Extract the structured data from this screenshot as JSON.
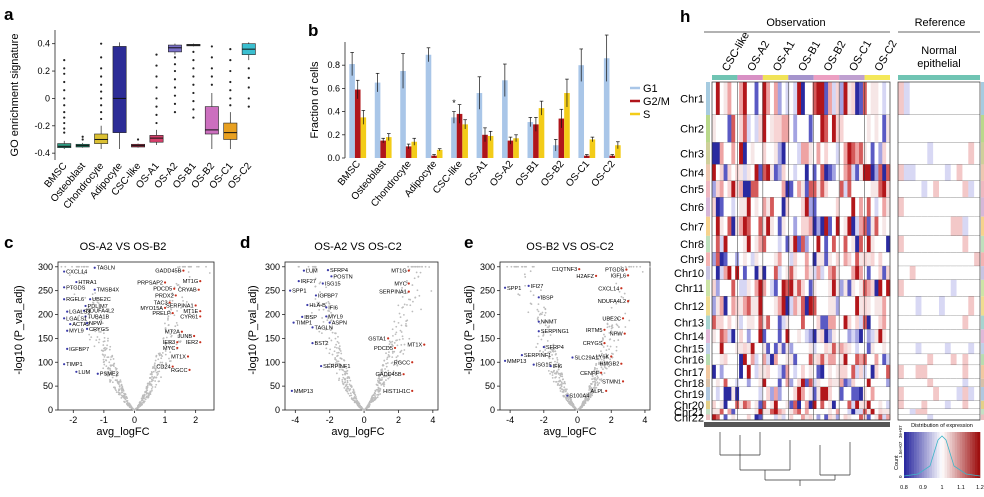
{
  "figure": {
    "panel_a": {
      "label": "a",
      "chart_data": {
        "type": "box",
        "ylabel": "GO enrichment signature",
        "ylim": [
          -0.45,
          0.5
        ],
        "yticks": [
          -0.4,
          -0.2,
          0.0,
          0.2,
          0.4
        ],
        "ytick_labels": [
          "-0.4",
          "-0.2",
          "0",
          "0.2",
          "0.4"
        ],
        "categories": [
          "BMSC",
          "Osteoblast",
          "Chondrocyte",
          "Adipocyte",
          "CSC-like",
          "OS-A1",
          "OS-A2",
          "OS-B1",
          "OS-B2",
          "OS-C1",
          "OS-C2"
        ],
        "colors": [
          "#2e9c82",
          "#1a8f6f",
          "#dbc032",
          "#2c2c96",
          "#b32e48",
          "#d6416c",
          "#7a70c8",
          "#b9b9b9",
          "#cc6fbf",
          "#e8a020",
          "#3bbfd0"
        ],
        "boxes": [
          {
            "q1": -0.36,
            "median": -0.35,
            "q3": -0.33,
            "whislo": -0.37,
            "whishi": -0.31,
            "outliers": [
              0.28,
              0.22,
              0.18,
              0.12,
              0.06,
              0.0,
              -0.05,
              -0.1,
              -0.14,
              -0.18,
              -0.22,
              -0.25
            ]
          },
          {
            "q1": -0.355,
            "median": -0.345,
            "q3": -0.335,
            "whislo": -0.36,
            "whishi": -0.325,
            "outliers": [
              -0.3,
              -0.28
            ]
          },
          {
            "q1": -0.33,
            "median": -0.3,
            "q3": -0.26,
            "whislo": -0.37,
            "whishi": -0.2,
            "outliers": [
              0.4,
              0.3,
              0.22,
              0.16,
              0.1,
              0.05,
              0.0,
              -0.05,
              -0.1,
              -0.15
            ]
          },
          {
            "q1": -0.25,
            "median": 0.0,
            "q3": 0.38,
            "whislo": -0.37,
            "whishi": 0.41,
            "outliers": []
          },
          {
            "q1": -0.355,
            "median": -0.345,
            "q3": -0.335,
            "whislo": -0.36,
            "whishi": -0.33,
            "outliers": [
              -0.3
            ]
          },
          {
            "q1": -0.32,
            "median": -0.29,
            "q3": -0.27,
            "whislo": -0.34,
            "whishi": -0.23,
            "outliers": [
              -0.18,
              -0.12,
              -0.06,
              0.0,
              0.08,
              0.16,
              0.24,
              0.32
            ]
          },
          {
            "q1": 0.34,
            "median": 0.37,
            "q3": 0.39,
            "whislo": 0.32,
            "whishi": 0.4,
            "outliers": [
              0.3,
              0.25,
              0.2,
              0.14,
              0.08,
              0.02,
              -0.04,
              -0.1
            ]
          },
          {
            "q1": 0.385,
            "median": 0.39,
            "q3": 0.395,
            "whislo": 0.38,
            "whishi": 0.4,
            "outliers": [
              0.34,
              0.28,
              0.22,
              0.16,
              0.1,
              0.04,
              -0.02,
              -0.08,
              -0.14
            ]
          },
          {
            "q1": -0.26,
            "median": -0.23,
            "q3": -0.06,
            "whislo": -0.37,
            "whishi": 0.04,
            "outliers": [
              0.1,
              0.16,
              0.22,
              0.3,
              0.38
            ]
          },
          {
            "q1": -0.3,
            "median": -0.25,
            "q3": -0.18,
            "whislo": -0.37,
            "whishi": -0.1,
            "outliers": [
              -0.05,
              0.0,
              0.06,
              0.12,
              0.2,
              0.28,
              0.36
            ]
          },
          {
            "q1": 0.32,
            "median": 0.36,
            "q3": 0.4,
            "whislo": 0.28,
            "whishi": 0.41,
            "outliers": [
              0.22,
              0.15,
              0.08,
              0.0,
              -0.06
            ]
          }
        ]
      }
    },
    "panel_b": {
      "label": "b",
      "chart_data": {
        "type": "bar",
        "ylabel": "Fraction of cells",
        "ylim": [
          0,
          1.0
        ],
        "yticks": [
          0.0,
          0.2,
          0.4,
          0.6,
          0.8
        ],
        "ytick_labels": [
          "0.0",
          "0.2",
          "0.4",
          "0.6",
          "0.8"
        ],
        "categories": [
          "BMSC",
          "Osteoblast",
          "Chondrocyte",
          "Adipocyte",
          "CSC-like",
          "OS-A1",
          "OS-A2",
          "OS-B1",
          "OS-B2",
          "OS-C1",
          "OS-C2"
        ],
        "series": [
          {
            "name": "G1",
            "color": "#a9c6e8",
            "values": [
              0.81,
              0.65,
              0.75,
              0.89,
              0.35,
              0.56,
              0.67,
              0.31,
              0.11,
              0.8,
              0.86
            ],
            "errors": [
              0.1,
              0.08,
              0.15,
              0.06,
              0.05,
              0.14,
              0.14,
              0.04,
              0.05,
              0.14,
              0.2
            ]
          },
          {
            "name": "G2/M",
            "color": "#b0151b",
            "values": [
              0.59,
              0.15,
              0.1,
              0.02,
              0.38,
              0.2,
              0.15,
              0.29,
              0.34,
              0.02,
              0.02
            ],
            "errors": [
              0.08,
              0.02,
              0.02,
              0.01,
              0.08,
              0.06,
              0.03,
              0.06,
              0.08,
              0.01,
              0.01
            ]
          },
          {
            "name": "S",
            "color": "#f3cc18",
            "values": [
              0.35,
              0.18,
              0.14,
              0.07,
              0.29,
              0.19,
              0.17,
              0.43,
              0.56,
              0.16,
              0.11
            ],
            "errors": [
              0.06,
              0.03,
              0.03,
              0.01,
              0.04,
              0.04,
              0.03,
              0.06,
              0.12,
              0.02,
              0.03
            ]
          }
        ],
        "annotation": "*"
      }
    },
    "panel_c": {
      "label": "c",
      "chart_data": {
        "type": "scatter",
        "title": "OS-A2 VS OS-B2",
        "xlabel": "avg_logFC",
        "ylabel": "-log10 (P_val_adj)",
        "xlim": [
          -2.5,
          2.6
        ],
        "ylim": [
          0,
          310
        ],
        "xticks": [
          -2,
          -1,
          0,
          1,
          2
        ],
        "yticks": [
          0,
          50,
          100,
          150,
          200,
          250,
          300
        ],
        "genes": [
          {
            "name": "CXCL14",
            "x": -2.3,
            "y": 290
          },
          {
            "name": "TAGLN",
            "x": -1.3,
            "y": 298
          },
          {
            "name": "HTRA1",
            "x": -1.9,
            "y": 268
          },
          {
            "name": "PTGDS",
            "x": -2.3,
            "y": 257
          },
          {
            "name": "TMSB4X",
            "x": -1.3,
            "y": 252
          },
          {
            "name": "RGFL6",
            "x": -2.3,
            "y": 232
          },
          {
            "name": "UBE2C",
            "x": -1.45,
            "y": 232
          },
          {
            "name": "PDLIM7",
            "x": -1.6,
            "y": 218
          },
          {
            "name": "NDUFA4L2",
            "x": -1.65,
            "y": 208
          },
          {
            "name": "LGALS3",
            "x": -2.2,
            "y": 206
          },
          {
            "name": "TUBA1B",
            "x": -1.6,
            "y": 196
          },
          {
            "name": "LGALS1",
            "x": -2.3,
            "y": 192
          },
          {
            "name": "ACTA2",
            "x": -2.1,
            "y": 180
          },
          {
            "name": "NPW",
            "x": -1.55,
            "y": 182
          },
          {
            "name": "MYL9",
            "x": -2.2,
            "y": 166
          },
          {
            "name": "CRYGS",
            "x": -1.55,
            "y": 170
          },
          {
            "name": "IGFBP7",
            "x": -2.2,
            "y": 128
          },
          {
            "name": "TIMP1",
            "x": -2.3,
            "y": 96
          },
          {
            "name": "LUM",
            "x": -1.9,
            "y": 80
          },
          {
            "name": "PSME2",
            "x": -1.2,
            "y": 76
          },
          {
            "name": "GADD45B",
            "x": 1.6,
            "y": 292
          },
          {
            "name": "MT1G",
            "x": 2.15,
            "y": 270
          },
          {
            "name": "PRPSAP2",
            "x": 1.0,
            "y": 267
          },
          {
            "name": "PDCD5",
            "x": 1.3,
            "y": 254
          },
          {
            "name": "CRYAB",
            "x": 2.1,
            "y": 252
          },
          {
            "name": "PRDX2",
            "x": 1.35,
            "y": 240
          },
          {
            "name": "TAC3",
            "x": 1.15,
            "y": 225
          },
          {
            "name": "SERPINA1",
            "x": 2.0,
            "y": 219
          },
          {
            "name": "MYO15A",
            "x": 1.0,
            "y": 214
          },
          {
            "name": "MT1E",
            "x": 2.15,
            "y": 207
          },
          {
            "name": "PRELP",
            "x": 1.25,
            "y": 203
          },
          {
            "name": "CYR61",
            "x": 2.15,
            "y": 196
          },
          {
            "name": "MT2A",
            "x": 1.55,
            "y": 164
          },
          {
            "name": "JUNB",
            "x": 1.95,
            "y": 155
          },
          {
            "name": "IER3",
            "x": 1.4,
            "y": 142
          },
          {
            "name": "IER2",
            "x": 2.15,
            "y": 142
          },
          {
            "name": "MYC",
            "x": 1.4,
            "y": 130
          },
          {
            "name": "MT1X",
            "x": 1.75,
            "y": 112
          },
          {
            "name": "CD24",
            "x": 1.25,
            "y": 91
          },
          {
            "name": "RGCC",
            "x": 1.8,
            "y": 84
          }
        ]
      }
    },
    "panel_d": {
      "label": "d",
      "chart_data": {
        "type": "scatter",
        "title": "OS-A2 VS OS-C2",
        "xlabel": "avg_logFC",
        "ylabel": "-log10 (P_val_adj)",
        "xlim": [
          -4.6,
          4.3
        ],
        "ylim": [
          0,
          310
        ],
        "xticks": [
          -4,
          -2,
          0,
          2,
          4
        ],
        "yticks": [
          0,
          50,
          100,
          150,
          200,
          250,
          300
        ],
        "genes": [
          {
            "name": "LUM",
            "x": -3.5,
            "y": 292
          },
          {
            "name": "SFRP4",
            "x": -2.1,
            "y": 293
          },
          {
            "name": "IRF27",
            "x": -3.8,
            "y": 270
          },
          {
            "name": "POSTN",
            "x": -1.9,
            "y": 280
          },
          {
            "name": "ISG15",
            "x": -2.4,
            "y": 265
          },
          {
            "name": "SPP1",
            "x": -4.3,
            "y": 250
          },
          {
            "name": "IGFBP7",
            "x": -2.8,
            "y": 240
          },
          {
            "name": "HLA-B",
            "x": -3.3,
            "y": 220
          },
          {
            "name": "IFI6",
            "x": -2.2,
            "y": 215
          },
          {
            "name": "IBSP",
            "x": -3.6,
            "y": 195
          },
          {
            "name": "MYL9",
            "x": -2.2,
            "y": 196
          },
          {
            "name": "TIMP1",
            "x": -4.1,
            "y": 183
          },
          {
            "name": "ASPN",
            "x": -2.0,
            "y": 183
          },
          {
            "name": "TAGLN",
            "x": -3.0,
            "y": 173
          },
          {
            "name": "BST2",
            "x": -3.0,
            "y": 140
          },
          {
            "name": "SERPINF1",
            "x": -2.5,
            "y": 92
          },
          {
            "name": "MMP13",
            "x": -4.2,
            "y": 40
          },
          {
            "name": "MT1G",
            "x": 2.6,
            "y": 292
          },
          {
            "name": "MYC",
            "x": 2.6,
            "y": 265
          },
          {
            "name": "SERPINA1",
            "x": 2.6,
            "y": 248
          },
          {
            "name": "GSTA1",
            "x": 1.4,
            "y": 150
          },
          {
            "name": "MT1X",
            "x": 3.5,
            "y": 137
          },
          {
            "name": "PDCD5",
            "x": 1.8,
            "y": 130
          },
          {
            "name": "RGCC",
            "x": 2.8,
            "y": 100
          },
          {
            "name": "GADD45B",
            "x": 2.3,
            "y": 75
          },
          {
            "name": "HIST1H1C",
            "x": 2.8,
            "y": 40
          }
        ]
      }
    },
    "panel_e": {
      "label": "e",
      "chart_data": {
        "type": "scatter",
        "title": "OS-B2 VS OS-C2",
        "xlabel": "avg_logFC",
        "ylabel": "-log10 (P_val_adj)",
        "xlim": [
          -4.6,
          4.3
        ],
        "ylim": [
          0,
          310
        ],
        "xticks": [
          -4,
          -2,
          0,
          2,
          4
        ],
        "yticks": [
          0,
          50,
          100,
          150,
          200,
          250,
          300
        ],
        "genes": [
          {
            "name": "C1QTNF3",
            "x": 0.1,
            "y": 295
          },
          {
            "name": "PTGDS",
            "x": 2.9,
            "y": 294
          },
          {
            "name": "H2AFZ",
            "x": 1.1,
            "y": 281
          },
          {
            "name": "IGFL6",
            "x": 3.0,
            "y": 282
          },
          {
            "name": "SPP1",
            "x": -4.3,
            "y": 256
          },
          {
            "name": "IFI27",
            "x": -2.9,
            "y": 260
          },
          {
            "name": "CXCL14",
            "x": 2.6,
            "y": 255
          },
          {
            "name": "IBSP",
            "x": -2.3,
            "y": 236
          },
          {
            "name": "NDUFA4L2",
            "x": 3.0,
            "y": 228
          },
          {
            "name": "UBE2C",
            "x": 2.7,
            "y": 192
          },
          {
            "name": "NNMT",
            "x": -2.3,
            "y": 185
          },
          {
            "name": "SERPING1",
            "x": -2.3,
            "y": 165
          },
          {
            "name": "IRTM5",
            "x": 1.6,
            "y": 168
          },
          {
            "name": "NPW",
            "x": 2.8,
            "y": 160
          },
          {
            "name": "CRYGS",
            "x": 1.6,
            "y": 140
          },
          {
            "name": "SFRP4",
            "x": -2.0,
            "y": 132
          },
          {
            "name": "SERPINF1",
            "x": -3.3,
            "y": 115
          },
          {
            "name": "SLC29A1",
            "x": -0.3,
            "y": 110
          },
          {
            "name": "LY6K",
            "x": 2.0,
            "y": 112
          },
          {
            "name": "MMP13",
            "x": -4.3,
            "y": 103
          },
          {
            "name": "ISG15",
            "x": -2.6,
            "y": 95
          },
          {
            "name": "IFI6",
            "x": -1.6,
            "y": 92
          },
          {
            "name": "HMGB2",
            "x": 2.6,
            "y": 97
          },
          {
            "name": "CENPF",
            "x": 1.4,
            "y": 78
          },
          {
            "name": "STMN1",
            "x": 2.7,
            "y": 60
          },
          {
            "name": "S100A4",
            "x": -0.6,
            "y": 30
          },
          {
            "name": "ALPL",
            "x": 1.7,
            "y": 40
          }
        ]
      }
    },
    "panel_h": {
      "label": "h",
      "observation_title": "Observation",
      "reference_title": "Reference",
      "reference_group": "Normal epithelial",
      "groups": [
        {
          "name": "CSC-like",
          "color": "#70c4b3"
        },
        {
          "name": "OS-A2",
          "color": "#d890c4"
        },
        {
          "name": "OS-A1",
          "color": "#f1e358"
        },
        {
          "name": "OS-B1",
          "color": "#a594cc"
        },
        {
          "name": "OS-B2",
          "color": "#ec9fc2"
        },
        {
          "name": "OS-C1",
          "color": "#bfa0d0"
        },
        {
          "name": "OS-C2",
          "color": "#f4e85a"
        }
      ],
      "chromosomes": [
        "Chr1",
        "Chr2",
        "Chr3",
        "Chr4",
        "Chr5",
        "Chr6",
        "Chr7",
        "Chr8",
        "Chr9",
        "Chr10",
        "Chr11",
        "Chr12",
        "Chr13",
        "Chr14",
        "Chr15",
        "Chr16",
        "Chr17",
        "Chr18",
        "Chr19",
        "Chr20",
        "Chr21",
        "Chr22"
      ],
      "chrom_colors": [
        "#a6cbe0",
        "#b9d88b",
        "#cfcf9a",
        "#eec7b0",
        "#f0b8c0",
        "#d7b7d8",
        "#f6d28c",
        "#bfe0bc",
        "#f4b3b3",
        "#c8c4e2",
        "#cde4a6",
        "#f0dc90",
        "#a8d4d0",
        "#e1b8d8",
        "#c0d0e8",
        "#b8dcb0",
        "#f2c8a0",
        "#d8c0a8",
        "#b0c8e0",
        "#e4d088",
        "#c4e0c4",
        "#ecc0c0"
      ],
      "colorbar": {
        "title": "Distribution of expression",
        "ticks": [
          "0.8",
          "0.9",
          "1",
          "1.1",
          "1.2"
        ],
        "count_label": "Count",
        "count_ticks": [
          "0",
          "1.5e+07",
          "3e+07"
        ],
        "colors": {
          "low": "#2b2aa0",
          "mid": "#ffffff",
          "high": "#9e1010"
        }
      }
    }
  }
}
